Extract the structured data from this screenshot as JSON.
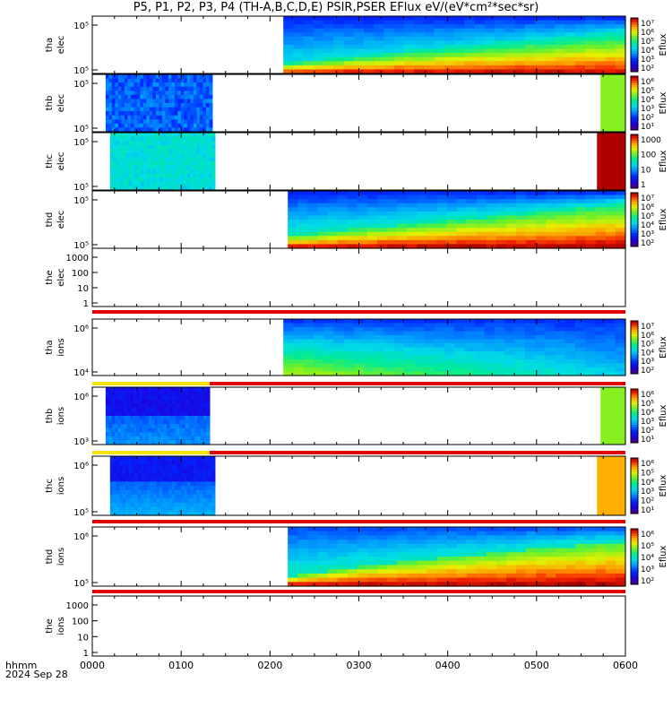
{
  "title": "P5, P1, P2, P3, P4 (TH-A,B,C,D,E) PSIR,PSER EFlux eV/(eV*cm²*sec*sr)",
  "time_axis": {
    "label_line1": "hhmm",
    "label_line2": "2024 Sep 28",
    "ticks": [
      "0000",
      "0100",
      "0200",
      "0300",
      "0400",
      "0500",
      "0600"
    ]
  },
  "chart_data": {
    "type": "heatmap",
    "title": "P5, P1, P2, P3, P4 (TH-A,B,C,D,E) PSIR,PSER EFlux eV/(eV*cm²*sec*sr)",
    "x_range_hours": [
      0,
      6
    ],
    "panels": [
      {
        "id": "tha_elec",
        "ylabel": [
          "tha",
          "elec"
        ],
        "yticks": [
          "10⁵",
          "10⁵"
        ],
        "data_start_hr": 2.15,
        "data_end_hr": 6.0,
        "profile": "elec_decay_strong",
        "cbar_label": "Eflux",
        "cbar_ticks": [
          "10⁷",
          "10⁶",
          "10⁵",
          "10⁴",
          "10³",
          "10²"
        ]
      },
      {
        "id": "thb_elec",
        "ylabel": [
          "thb",
          "elec"
        ],
        "yticks": [
          "10⁵",
          "10⁵"
        ],
        "data_start_hr": 0.15,
        "data_end_hr": 1.35,
        "profile": "flat_blue",
        "extra_block_hr": [
          5.72,
          6.0
        ],
        "extra_color": "#86f020",
        "cbar_label": "Eflux",
        "cbar_ticks": [
          "10⁶",
          "10⁵",
          "10⁴",
          "10³",
          "10²",
          "10¹"
        ]
      },
      {
        "id": "thc_elec",
        "ylabel": [
          "thc",
          "elec"
        ],
        "yticks": [
          "10⁵",
          "10⁵"
        ],
        "data_start_hr": 0.2,
        "data_end_hr": 1.38,
        "profile": "flat_cyan",
        "extra_block_hr": [
          5.68,
          6.0
        ],
        "extra_color": "#b00000",
        "cbar_label": "Eflux",
        "cbar_ticks": [
          "1000",
          "100",
          "10",
          "1"
        ]
      },
      {
        "id": "thd_elec",
        "ylabel": [
          "thd",
          "elec"
        ],
        "yticks": [
          "10⁵",
          "10⁵"
        ],
        "data_start_hr": 2.2,
        "data_end_hr": 6.0,
        "profile": "elec_decay_red",
        "cbar_label": "Eflux",
        "cbar_ticks": [
          "10⁷",
          "10⁶",
          "10⁵",
          "10⁴",
          "10³",
          "10²"
        ]
      },
      {
        "id": "the_elec",
        "ylabel": [
          "the",
          "elec"
        ],
        "yticks": [
          "1000",
          "100",
          "10",
          "1"
        ],
        "empty": true
      },
      {
        "id": "tha_ions",
        "ylabel": [
          "tha",
          "ions"
        ],
        "yticks": [
          "10⁶",
          "10⁴"
        ],
        "data_start_hr": 2.15,
        "data_end_hr": 6.0,
        "profile": "ion_decay",
        "cbar_label": "Eflux",
        "cbar_ticks": [
          "10⁷",
          "10⁶",
          "10⁵",
          "10⁴",
          "10³",
          "10²"
        ]
      },
      {
        "id": "thb_ions",
        "ylabel": [
          "thb",
          "ions"
        ],
        "yticks": [
          "10⁶",
          "10³"
        ],
        "data_start_hr": 0.15,
        "data_end_hr": 1.32,
        "profile": "ion_blue_purple",
        "extra_block_hr": [
          5.72,
          6.0
        ],
        "extra_color": "#86f020",
        "cbar_label": "Eflux",
        "cbar_ticks": [
          "10⁶",
          "10⁵",
          "10⁴",
          "10³",
          "10²",
          "10¹"
        ]
      },
      {
        "id": "thc_ions",
        "ylabel": [
          "thc",
          "ions"
        ],
        "yticks": [
          "10⁶",
          "10⁵"
        ],
        "data_start_hr": 0.2,
        "data_end_hr": 1.38,
        "profile": "ion_blue_purple2",
        "extra_block_hr": [
          5.68,
          6.0
        ],
        "extra_color": "#ffb000",
        "cbar_label": "Eflux",
        "cbar_ticks": [
          "10⁶",
          "10⁵",
          "10⁴",
          "10³",
          "10²",
          "10¹"
        ]
      },
      {
        "id": "thd_ions",
        "ylabel": [
          "thd",
          "ions"
        ],
        "yticks": [
          "10⁶",
          "10⁵"
        ],
        "data_start_hr": 2.2,
        "data_end_hr": 6.0,
        "profile": "ion_decay_red",
        "cbar_label": "Eflux",
        "cbar_ticks": [
          "10⁶",
          "10⁵",
          "10⁴",
          "10³",
          "10²"
        ]
      },
      {
        "id": "the_ions",
        "ylabel": [
          "the",
          "ions"
        ],
        "yticks": [
          "1000",
          "100",
          "10",
          "1"
        ],
        "empty": true
      }
    ],
    "flag_bars": [
      {
        "after_panel": "the_elec",
        "segments": [
          {
            "from_hr": 0,
            "to_hr": 6,
            "color": "#e00000"
          }
        ]
      },
      {
        "after_panel": "tha_ions",
        "segments": [
          {
            "from_hr": 0,
            "to_hr": 1.32,
            "color": "#f4e400"
          },
          {
            "from_hr": 1.32,
            "to_hr": 6,
            "color": "#e00000"
          }
        ]
      },
      {
        "after_panel": "thb_ions",
        "segments": [
          {
            "from_hr": 0,
            "to_hr": 1.32,
            "color": "#f4e400"
          },
          {
            "from_hr": 1.32,
            "to_hr": 6,
            "color": "#e00000"
          }
        ]
      },
      {
        "after_panel": "thc_ions",
        "segments": [
          {
            "from_hr": 0,
            "to_hr": 6,
            "color": "#e00000"
          }
        ]
      },
      {
        "after_panel": "thd_ions",
        "segments": [
          {
            "from_hr": 0,
            "to_hr": 6,
            "color": "#e00000"
          }
        ]
      }
    ]
  }
}
